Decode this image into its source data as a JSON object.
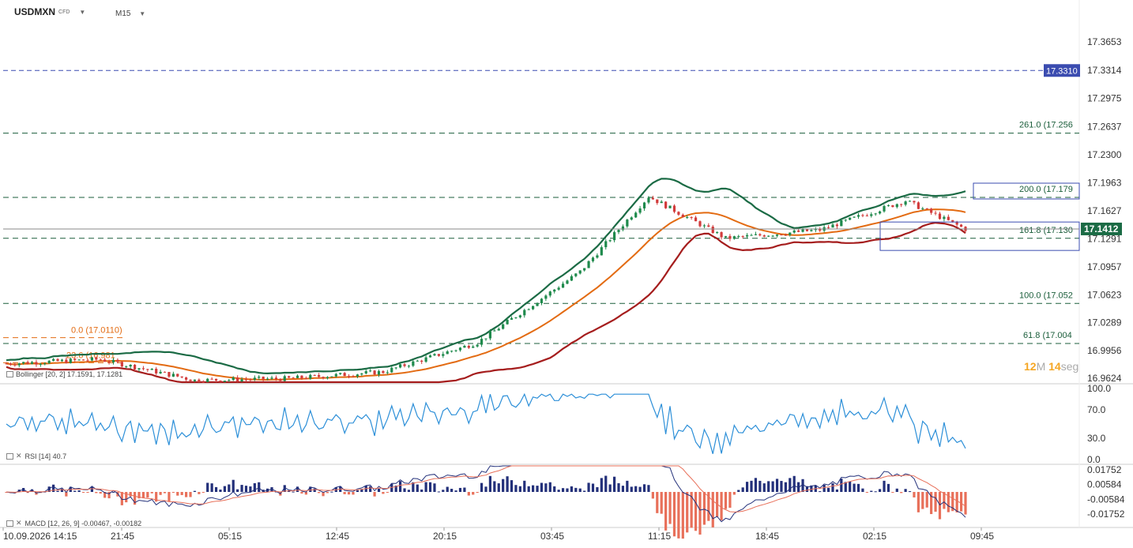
{
  "header": {
    "symbol": "USDMXN",
    "type": "CFD",
    "timeframe": "M15"
  },
  "timer": {
    "minutes": "12",
    "minutes_unit": "M",
    "seconds": "14",
    "seconds_unit": "seg"
  },
  "price_axis": {
    "ticks": [
      "17.3653",
      "17.3314",
      "17.2975",
      "17.2637",
      "17.2300",
      "17.1963",
      "17.1627",
      "17.1291",
      "17.0957",
      "17.0623",
      "17.0289",
      "16.9956",
      "16.9624"
    ],
    "current_price": "17.1412",
    "level_tag": "17.3310"
  },
  "fib_levels": [
    {
      "label": "261.0 (17.256",
      "value": 17.256
    },
    {
      "label": "200.0 (17.179",
      "value": 17.179
    },
    {
      "label": "161.8 (17.130",
      "value": 17.13
    },
    {
      "label": "100.0 (17.052",
      "value": 17.052
    },
    {
      "label": "61.8 (17.004",
      "value": 17.004
    },
    {
      "label": "23.6 (16.981",
      "value": 16.981
    },
    {
      "label": "0.0 (17.0110)",
      "value": 17.011
    }
  ],
  "time_axis": [
    "10.09.2026 14:15",
    "21:45",
    "05:15",
    "12:45",
    "20:15",
    "03:45",
    "11:15",
    "18:45",
    "02:15",
    "09:45"
  ],
  "indicators": {
    "bollinger": "Bollinger [20, 2] 17.1591, 17.1281",
    "rsi": "RSI [14] 40.7",
    "rsi_ticks": [
      "100.0",
      "70.0",
      "30.0",
      "0.0"
    ],
    "macd": "MACD [12, 26, 9] -0.00467, -0.00182",
    "macd_ticks": [
      "0.01752",
      "0.00584",
      "-0.00584",
      "-0.01752"
    ]
  },
  "colors": {
    "bull": "#1f8a4c",
    "bear": "#d23b3b",
    "upper_band": "#1b6b45",
    "mid_band": "#e36b12",
    "lower_band": "#a51d1d",
    "rsi": "#2c8fd8",
    "macd_line": "#23307a",
    "signal": "#e8705a",
    "fib": "#1b5e3b",
    "tag": "#3b4cb0"
  },
  "chart_data": {
    "type": "candlestick",
    "series": [
      {
        "name": "price",
        "x": [
          "14:15",
          "21:45",
          "05:15",
          "12:45",
          "20:15",
          "03:45",
          "07:30",
          "11:15",
          "15:00",
          "18:45",
          "02:15",
          "09:45"
        ],
        "values": [
          16.98,
          16.985,
          16.96,
          16.962,
          16.97,
          17.005,
          17.09,
          17.18,
          17.13,
          17.14,
          17.175,
          17.141
        ]
      }
    ],
    "ylim": [
      16.9624,
      17.3653
    ],
    "annotations": [
      "0.0 (17.0110)",
      "23.6 (16.981",
      "61.8 (17.004",
      "100.0 (17.052",
      "161.8 (17.130",
      "200.0 (17.179",
      "261.0 (17.256"
    ]
  }
}
